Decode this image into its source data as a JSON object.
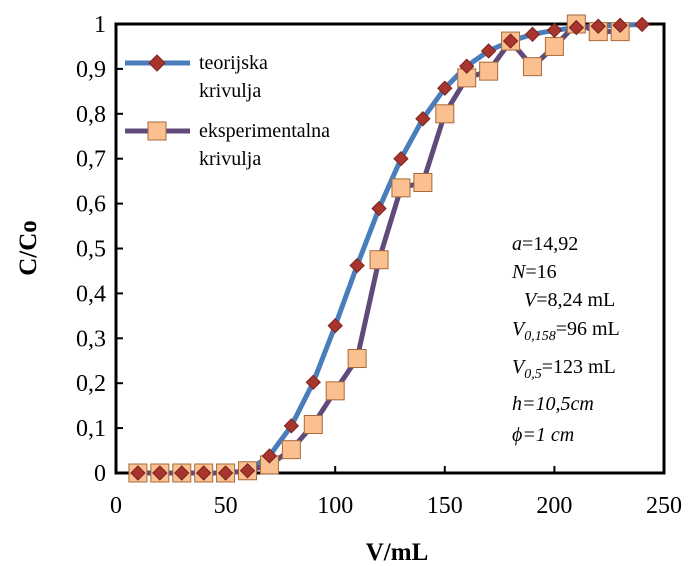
{
  "chart_data": {
    "type": "line",
    "xlabel": "V/mL",
    "ylabel": "C/Co",
    "xlim": [
      0,
      250
    ],
    "ylim": [
      0,
      1
    ],
    "x_ticks": [
      "0",
      "50",
      "100",
      "150",
      "200",
      "250"
    ],
    "y_ticks": [
      "0",
      "0,1",
      "0,2",
      "0,3",
      "0,4",
      "0,5",
      "0,6",
      "0,7",
      "0,8",
      "0,9",
      "1"
    ],
    "grid": false,
    "legend_position": "top-left",
    "series": [
      {
        "name_lines": [
          "teorijska",
          "krivulja"
        ],
        "color": "#4a7ebb",
        "marker": "diamond",
        "marker_color": "#a8342e",
        "x": [
          10,
          20,
          30,
          40,
          50,
          60,
          70,
          80,
          90,
          100,
          110,
          120,
          130,
          140,
          150,
          160,
          170,
          180,
          190,
          200,
          210,
          220,
          230,
          240
        ],
        "values": [
          0.0,
          0.0,
          0.0,
          0.0,
          0.0,
          0.005,
          0.038,
          0.105,
          0.202,
          0.328,
          0.462,
          0.589,
          0.7,
          0.789,
          0.857,
          0.906,
          0.94,
          0.962,
          0.977,
          0.986,
          0.992,
          0.995,
          0.997,
          0.999
        ]
      },
      {
        "name_lines": [
          "eksperimentalna",
          "krivulja"
        ],
        "color": "#604a7b",
        "marker": "square",
        "marker_color": "#fac090",
        "x": [
          10,
          20,
          30,
          40,
          50,
          60,
          70,
          80,
          90,
          100,
          110,
          120,
          130,
          140,
          150,
          160,
          170,
          180,
          190,
          200,
          210,
          220,
          230
        ],
        "values": [
          0.0,
          0.0,
          0.0,
          0.0,
          0.0,
          0.005,
          0.018,
          0.052,
          0.108,
          0.183,
          0.255,
          0.475,
          0.635,
          0.647,
          0.8,
          0.88,
          0.895,
          0.962,
          0.905,
          0.95,
          1.0,
          0.983,
          0.983
        ]
      }
    ],
    "annotations": {
      "a": {
        "sym": "a",
        "val": "=14,92"
      },
      "N": {
        "sym": "N",
        "val": "=16"
      },
      "V": {
        "sym": "V",
        "val": "=8,24 mL"
      },
      "V0158": {
        "sym": "V",
        "sub": "0,158",
        "val": "=96 mL"
      },
      "V05": {
        "sym": "V",
        "sub": "0,5",
        "val": "=123 mL"
      },
      "h": "h=10,5cm",
      "phi": {
        "sym": "ϕ",
        "val": "=1 cm"
      }
    }
  }
}
